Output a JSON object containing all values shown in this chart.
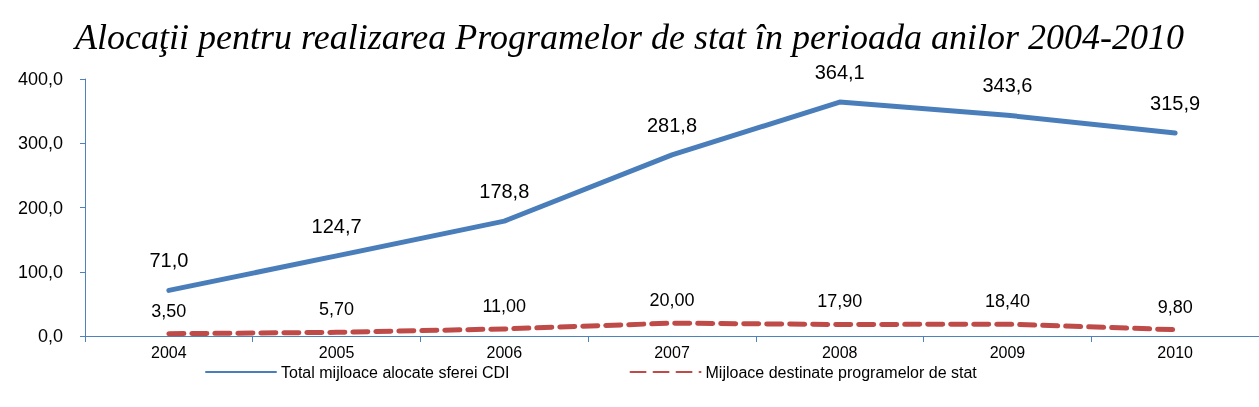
{
  "chart_data": {
    "type": "line",
    "title": "Alocaţii pentru realizarea Programelor de stat în perioada anilor 2004-2010",
    "categories": [
      "2004",
      "2005",
      "2006",
      "2007",
      "2008",
      "2009",
      "2010"
    ],
    "series": [
      {
        "name": "Total mijloace alocate sferei CDI",
        "color": "#4a7ebb",
        "line_style": "solid",
        "values": [
          71.0,
          124.7,
          178.8,
          281.8,
          364.1,
          343.6,
          315.9
        ],
        "value_labels": [
          "71,0",
          "124,7",
          "178,8",
          "281,8",
          "364,1",
          "343,6",
          "315,9"
        ]
      },
      {
        "name": "Mijloace destinate programelor de stat",
        "color": "#be4b48",
        "line_style": "dashed",
        "values": [
          3.5,
          5.7,
          11.0,
          20.0,
          17.9,
          18.4,
          9.8
        ],
        "value_labels": [
          "3,50",
          "5,70",
          "11,00",
          "20,00",
          "17,90",
          "18,40",
          "9,80"
        ]
      }
    ],
    "ylim": [
      0,
      400
    ],
    "yticks": [
      {
        "value": 0,
        "label": "0,0"
      },
      {
        "value": 100,
        "label": "100,0"
      },
      {
        "value": 200,
        "label": "200,0"
      },
      {
        "value": 300,
        "label": "300,0"
      },
      {
        "value": 400,
        "label": "400,0"
      }
    ],
    "grid": false,
    "legend": "bottom",
    "marker": "none"
  }
}
